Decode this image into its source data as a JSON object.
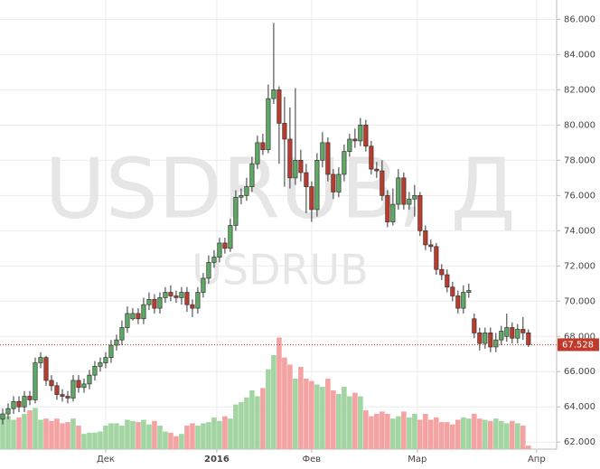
{
  "chart_data": {
    "type": "candlestick",
    "watermark": "USDRUB, Д",
    "watermark_symbol": "USDRUB",
    "open": [
      63.3,
      63.6,
      63.9,
      64.3,
      64.0,
      64.6,
      64.4,
      66.5,
      66.8,
      65.5,
      65.2,
      64.7,
      64.6,
      64.5,
      65.5,
      65.1,
      65.3,
      65.8,
      66.3,
      66.5,
      66.8,
      67.5,
      67.8,
      68.5,
      69.0,
      69.3,
      69.0,
      69.8,
      70.1,
      69.6,
      70.2,
      70.5,
      70.3,
      70.2,
      70.5,
      69.8,
      69.6,
      70.5,
      71.3,
      72.2,
      72.5,
      73.3,
      73.0,
      74.3,
      75.9,
      76.0,
      76.5,
      77.8,
      79.0,
      78.6,
      81.5,
      82.0,
      80.1,
      79.2,
      77.0,
      78.0,
      77.3,
      76.5,
      75.2,
      78.0,
      79.0,
      77.2,
      76.2,
      77.2,
      78.5,
      79.2,
      79.1,
      80.0,
      78.8,
      77.5,
      77.4,
      76.0,
      74.5,
      75.5,
      77.0,
      75.5,
      75.8,
      76.0,
      74.0,
      73.2,
      73.1,
      71.8,
      71.5,
      70.8,
      70.3,
      69.6,
      70.5,
      69.0,
      68.2,
      67.6,
      68.2,
      67.4,
      67.8,
      68.0,
      68.5,
      67.9,
      68.4,
      68.2
    ],
    "high": [
      63.9,
      64.2,
      64.6,
      64.6,
      64.9,
      64.9,
      66.8,
      67.1,
      66.9,
      65.8,
      65.4,
      65.0,
      64.9,
      65.8,
      65.8,
      65.6,
      66.1,
      66.6,
      66.8,
      67.1,
      67.8,
      68.1,
      68.9,
      69.7,
      69.6,
      69.6,
      70.2,
      70.5,
      70.4,
      70.5,
      70.8,
      70.9,
      70.6,
      70.8,
      70.8,
      70.1,
      70.8,
      71.6,
      72.6,
      72.9,
      73.6,
      73.6,
      74.7,
      76.3,
      76.4,
      77.0,
      78.2,
      79.4,
      79.5,
      82.3,
      85.8,
      82.2,
      81.6,
      81.0,
      82.1,
      78.6,
      77.8,
      76.8,
      78.4,
      79.6,
      79.3,
      77.5,
      77.6,
      78.9,
      79.5,
      79.8,
      80.4,
      80.3,
      79.1,
      77.9,
      78.0,
      76.3,
      76.4,
      77.5,
      77.3,
      76.2,
      76.6,
      76.2,
      74.3,
      73.5,
      73.3,
      72.1,
      71.8,
      71.1,
      70.6,
      70.9,
      71.0,
      69.3,
      68.5,
      68.5,
      68.5,
      68.2,
      68.6,
      69.3,
      68.8,
      68.7,
      69.1,
      68.4
    ],
    "low": [
      63.0,
      63.3,
      63.6,
      63.7,
      63.7,
      64.1,
      64.2,
      66.2,
      65.2,
      64.9,
      64.4,
      64.3,
      64.2,
      64.3,
      64.8,
      64.8,
      65.0,
      65.5,
      66.0,
      66.2,
      66.5,
      67.2,
      67.5,
      68.2,
      68.9,
      68.7,
      68.7,
      69.5,
      69.3,
      69.3,
      69.9,
      70.0,
      69.9,
      69.8,
      69.4,
      69.1,
      69.3,
      70.2,
      71.0,
      71.9,
      72.2,
      72.7,
      72.8,
      74.0,
      75.5,
      75.7,
      76.2,
      77.5,
      78.3,
      78.4,
      81.2,
      77.8,
      76.5,
      76.4,
      76.6,
      76.8,
      75.0,
      74.5,
      74.8,
      77.6,
      76.8,
      75.8,
      75.9,
      76.8,
      78.2,
      78.7,
      78.8,
      78.5,
      77.2,
      77.0,
      75.7,
      74.2,
      74.3,
      75.2,
      75.2,
      75.2,
      74.8,
      73.7,
      72.9,
      72.8,
      71.5,
      71.2,
      70.5,
      70.0,
      69.3,
      69.3,
      70.2,
      67.9,
      67.2,
      67.3,
      67.1,
      67.1,
      67.5,
      67.7,
      67.6,
      67.6,
      67.8,
      67.4
    ],
    "close": [
      63.6,
      63.9,
      64.3,
      64.0,
      64.6,
      64.4,
      66.5,
      66.8,
      65.5,
      65.2,
      64.7,
      64.6,
      64.5,
      65.5,
      65.1,
      65.3,
      65.8,
      66.3,
      66.5,
      66.8,
      67.5,
      67.8,
      68.5,
      69.3,
      69.3,
      69.0,
      69.8,
      70.1,
      69.6,
      70.2,
      70.5,
      70.3,
      70.2,
      70.5,
      69.8,
      69.6,
      70.5,
      71.3,
      72.2,
      72.5,
      73.3,
      73.0,
      74.3,
      75.9,
      76.0,
      76.5,
      77.8,
      79.0,
      78.6,
      81.5,
      82.0,
      80.1,
      79.2,
      77.0,
      78.0,
      77.3,
      76.5,
      75.2,
      78.0,
      79.0,
      77.2,
      76.2,
      77.2,
      78.5,
      79.2,
      79.1,
      80.0,
      78.8,
      77.5,
      77.4,
      76.0,
      74.5,
      75.5,
      77.0,
      75.5,
      75.8,
      76.0,
      74.0,
      73.2,
      73.1,
      71.8,
      71.5,
      70.8,
      70.3,
      69.6,
      70.5,
      70.6,
      68.2,
      67.6,
      68.2,
      67.4,
      67.8,
      68.3,
      68.5,
      67.9,
      68.4,
      68.2,
      67.528
    ],
    "volume": [
      30,
      28,
      25,
      27,
      30,
      33,
      35,
      25,
      26,
      24,
      26,
      22,
      23,
      26,
      20,
      13,
      14,
      14,
      15,
      20,
      22,
      22,
      20,
      25,
      24,
      23,
      25,
      21,
      24,
      20,
      15,
      14,
      11,
      13,
      20,
      22,
      20,
      22,
      23,
      27,
      24,
      28,
      26,
      38,
      40,
      44,
      50,
      45,
      52,
      68,
      80,
      95,
      78,
      72,
      60,
      70,
      60,
      58,
      55,
      53,
      60,
      50,
      47,
      53,
      45,
      48,
      45,
      33,
      28,
      30,
      32,
      30,
      26,
      28,
      32,
      27,
      30,
      25,
      30,
      25,
      27,
      23,
      23,
      21,
      25,
      27,
      26,
      30,
      26,
      25,
      24,
      26,
      24,
      22,
      24,
      22,
      20,
      3
    ],
    "up_color": "#5bab62",
    "down_color": "#c0392b",
    "up_volume_color": "#a3d5a3",
    "down_volume_color": "#f4a3a3",
    "xlim": [
      -0.5,
      102.2
    ],
    "ylim": [
      61.6,
      87.1
    ],
    "xticks": [
      {
        "value": 19,
        "label": "Дек"
      },
      {
        "value": 39.5,
        "label": "2016"
      },
      {
        "value": 57,
        "label": "Фев"
      },
      {
        "value": 76.5,
        "label": "Мар"
      },
      {
        "value": 98.5,
        "label": "Апр"
      }
    ],
    "yticks": [
      {
        "value": 62,
        "label": "62.000"
      },
      {
        "value": 64,
        "label": "64.000"
      },
      {
        "value": 66,
        "label": "66.000"
      },
      {
        "value": 68,
        "label": "68.000"
      },
      {
        "value": 70,
        "label": "70.000"
      },
      {
        "value": 72,
        "label": "72.000"
      },
      {
        "value": 74,
        "label": "74.000"
      },
      {
        "value": 76,
        "label": "76.000"
      },
      {
        "value": 78,
        "label": "78.000"
      },
      {
        "value": 80,
        "label": "80.000"
      },
      {
        "value": 82,
        "label": "82.000"
      },
      {
        "value": 84,
        "label": "84.000"
      },
      {
        "value": 86,
        "label": "86.000"
      }
    ],
    "grid": true
  }
}
